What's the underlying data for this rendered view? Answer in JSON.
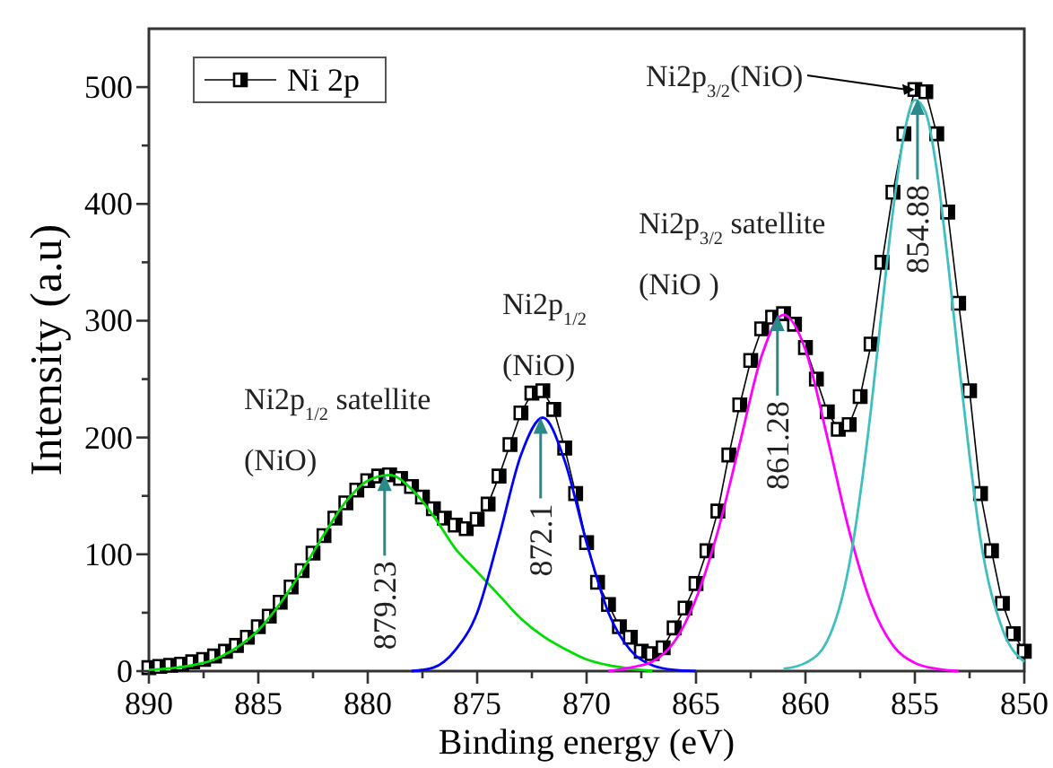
{
  "chart_data": {
    "type": "line",
    "xlabel": "Binding energy (eV)",
    "ylabel": "Intensity (a.u)",
    "xlim": [
      890,
      850
    ],
    "ylim": [
      0,
      550
    ],
    "xticks": [
      890,
      {
        "value": 887.5,
        "label": null
      },
      885,
      {
        "value": 882.5,
        "label": null
      },
      880,
      {
        "value": 877.5,
        "label": null
      },
      875,
      {
        "value": 872.5,
        "label": null
      },
      870,
      {
        "value": 867.5,
        "label": null
      },
      865,
      {
        "value": 862.5,
        "label": null
      },
      860,
      {
        "value": 857.5,
        "label": null
      },
      855,
      {
        "value": 852.5,
        "label": null
      },
      850
    ],
    "yticks": [
      0,
      {
        "value": 50,
        "label": null
      },
      100,
      {
        "value": 150,
        "label": null
      },
      200,
      {
        "value": 250,
        "label": null
      },
      300,
      {
        "value": 350,
        "label": null
      },
      400,
      {
        "value": 450,
        "label": null
      },
      500
    ],
    "grid": false,
    "legend": "top left",
    "series": [
      {
        "name": "Ni 2p",
        "color": "#000000",
        "marker": "square",
        "x": [
          890,
          889.5,
          889,
          888.5,
          888,
          887.5,
          887,
          886.5,
          886,
          885.5,
          885,
          884.5,
          884,
          883.5,
          883,
          882.5,
          882,
          881.5,
          881,
          880.5,
          880,
          879.5,
          879,
          878.5,
          878,
          877.5,
          877,
          876.5,
          876,
          875.5,
          875,
          874.5,
          874,
          873.5,
          873,
          872.5,
          872,
          871.5,
          871,
          870.5,
          870,
          869.5,
          869,
          868.5,
          868,
          867.5,
          867,
          866.5,
          866,
          865.5,
          865,
          864.5,
          864,
          863.5,
          863,
          862.5,
          862,
          861.5,
          861,
          860.5,
          860,
          859.5,
          859,
          858.5,
          858,
          857.5,
          857,
          856.5,
          856,
          855.5,
          855,
          854.5,
          854,
          853.5,
          853,
          852.5,
          852,
          851.5,
          851,
          850.5,
          850
        ],
        "values": [
          3,
          4,
          5,
          6,
          8,
          10,
          13,
          17,
          22,
          29,
          38,
          47,
          59,
          72,
          86,
          101,
          116,
          131,
          144,
          155,
          163,
          167,
          168,
          165,
          158,
          149,
          139,
          131,
          125,
          122,
          130,
          143,
          167,
          194,
          221,
          238,
          240,
          224,
          191,
          152,
          110,
          76,
          57,
          38,
          29,
          17,
          15,
          20,
          37,
          54,
          75,
          103,
          137,
          185,
          228,
          266,
          293,
          303,
          306,
          297,
          277,
          250,
          222,
          207,
          211,
          235,
          280,
          350,
          410,
          460,
          498,
          496,
          460,
          393,
          315,
          240,
          152,
          103,
          58,
          32,
          17
        ]
      },
      {
        "color": "#00dd00",
        "marker": "none",
        "x": [
          890,
          888,
          887,
          886,
          885,
          884,
          883,
          882,
          881,
          880,
          879,
          878,
          877,
          876,
          875,
          874,
          873,
          872,
          871,
          870,
          869,
          868,
          867
        ],
        "values": [
          1,
          5,
          10,
          20,
          35,
          58,
          86,
          117,
          145,
          163,
          168,
          156,
          133,
          105,
          85,
          65,
          45,
          30,
          19,
          10,
          5,
          2,
          0
        ]
      },
      {
        "color": "#0000ff",
        "marker": "none",
        "x": [
          878,
          877,
          876,
          875,
          874,
          873,
          872,
          871,
          870,
          869,
          868,
          867,
          866,
          865
        ],
        "values": [
          0,
          3,
          18,
          50,
          115,
          185,
          217,
          180,
          110,
          50,
          18,
          5,
          1,
          0
        ]
      },
      {
        "color": "#ff00ff",
        "marker": "none",
        "x": [
          869,
          868,
          867,
          866,
          865,
          864,
          863,
          862,
          861,
          860,
          859,
          858,
          857,
          856,
          855,
          854,
          853
        ],
        "values": [
          0,
          3,
          8,
          25,
          62,
          120,
          195,
          270,
          305,
          275,
          200,
          120,
          58,
          22,
          7,
          2,
          0
        ]
      },
      {
        "color": "#3fbfbf",
        "marker": "none",
        "x": [
          861,
          860,
          859,
          858,
          857,
          856.5,
          856,
          855.5,
          855,
          854.5,
          854,
          853.5,
          853,
          852.5,
          852,
          851,
          850
        ],
        "values": [
          2,
          7,
          26,
          91,
          225,
          311,
          394,
          459,
          489,
          478,
          429,
          352,
          266,
          184,
          113,
          36,
          8
        ]
      }
    ],
    "annotations": [
      "Ni2p$_{1/2}$ satellite\n(NiO)",
      "Ni2p$_{1/2}$\n(NiO)",
      "Ni2p$_{3/2}$ satellite\n(NiO )",
      {
        "text": "Ni2p$_{3/2}$(NiO)",
        "x": 855,
        "y": 498
      },
      {
        "text": "879.23",
        "x": 879.23,
        "y": 168
      },
      {
        "text": "872.1",
        "x": 872.1,
        "y": 217
      },
      {
        "text": "861.28",
        "x": 861.28,
        "y": 305
      },
      {
        "text": "854.88",
        "x": 854.88,
        "y": 490
      }
    ]
  }
}
